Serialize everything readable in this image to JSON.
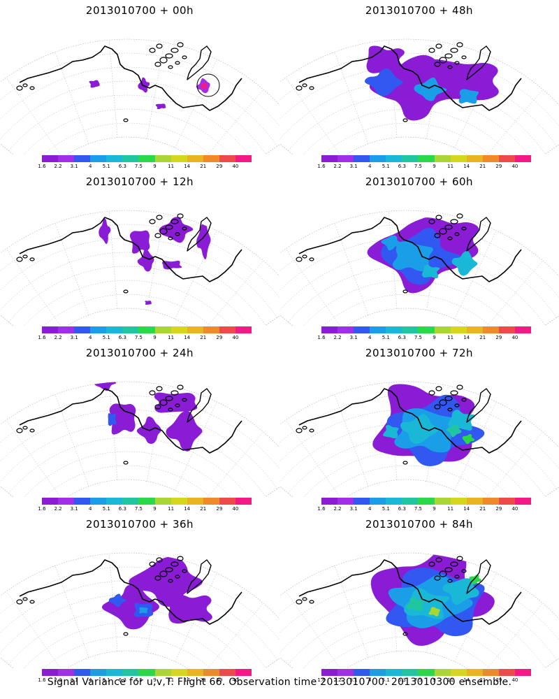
{
  "colorbar": {
    "colors": [
      "#8a1cd6",
      "#a12ee8",
      "#3158f0",
      "#1a9ee8",
      "#19b8d6",
      "#1fc6a0",
      "#2ad94a",
      "#a9d633",
      "#d6d61f",
      "#e8b41f",
      "#ef8a2a",
      "#ef4a4a",
      "#f21b85"
    ],
    "labels": [
      "1.6",
      "2.2",
      "3.1",
      "4",
      "5.1",
      "6.3",
      "7.5",
      "9",
      "11",
      "14",
      "21",
      "29",
      "40"
    ]
  },
  "panels": [
    {
      "title": "2013010700 + 00h",
      "level": 0
    },
    {
      "title": "2013010700 + 48h",
      "level": 4
    },
    {
      "title": "2013010700 + 12h",
      "level": 1
    },
    {
      "title": "2013010700 + 60h",
      "level": 5
    },
    {
      "title": "2013010700 + 24h",
      "level": 2
    },
    {
      "title": "2013010700 + 72h",
      "level": 6
    },
    {
      "title": "2013010700 + 36h",
      "level": 3
    },
    {
      "title": "2013010700 + 84h",
      "level": 7
    }
  ],
  "footer": "Signal Variance for u,v,T. Flight 66. Observation time 2013010700. 2013010300 ensemble."
}
